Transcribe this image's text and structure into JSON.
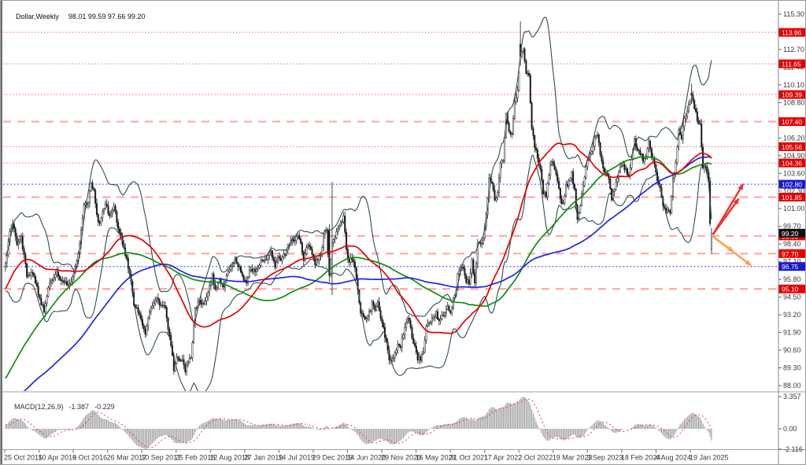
{
  "window": {
    "title_symbol": "Dollar,Weekly",
    "title_ohlc": "98.01 99.59 97.66 99.20"
  },
  "chart_data": {
    "type": "candlestick",
    "symbol": "Dollar",
    "timeframe": "Weekly",
    "last_bar_ohlc": {
      "open": 98.01,
      "high": 99.59,
      "low": 97.66,
      "close": 99.2
    },
    "x_axis_labels": [
      "25 Oct 2015",
      "10 Apr 2016",
      "9 Oct 2016",
      "26 Mar 2017",
      "10 Sep 2017",
      "25 Feb 2018",
      "12 Aug 2018",
      "27 Jan 2019",
      "14 Jul 2019",
      "29 Dec 2019",
      "14 Jun 2020",
      "29 Nov 2020",
      "16 May 2021",
      "31 Oct 2021",
      "17 Apr 2022",
      "2 Oct 2022",
      "19 Mar 2023",
      "3 Sep 2023",
      "18 Feb 2024",
      "4 Aug 2024",
      "19 Jan 2025"
    ],
    "y_axis_ticks": [
      "115.30",
      "112.70",
      "111.40",
      "110.10",
      "108.80",
      "106.20",
      "104.90",
      "103.60",
      "102.30",
      "101.00",
      "99.70",
      "98.40",
      "97.10",
      "95.80",
      "94.50",
      "93.20",
      "91.90",
      "90.60",
      "89.30",
      "88.00"
    ],
    "levels": [
      {
        "price": 113.96,
        "label": "113.96",
        "style": "dot-red"
      },
      {
        "price": 111.65,
        "label": "111.65",
        "style": "dot-red"
      },
      {
        "price": 109.39,
        "label": "109.39",
        "style": "dot-red"
      },
      {
        "price": 107.4,
        "label": "107.40",
        "style": "dash-red"
      },
      {
        "price": 105.56,
        "label": "105.56",
        "style": "dot-red"
      },
      {
        "price": 104.36,
        "label": "104.36",
        "style": "dot-red"
      },
      {
        "price": 102.8,
        "label": "102.80",
        "style": "dot-blue"
      },
      {
        "price": 101.85,
        "label": "101.85",
        "style": "dash-red"
      },
      {
        "price": 99.0,
        "label": "99.00",
        "style": "dash-red"
      },
      {
        "price": 97.7,
        "label": "97.70",
        "style": "dash-red"
      },
      {
        "price": 96.75,
        "label": "96.75",
        "style": "dot-blue"
      },
      {
        "price": 95.1,
        "label": "95.10",
        "style": "dash-red"
      }
    ],
    "current_price": {
      "value": 99.2,
      "label": "99.20"
    },
    "indicators": {
      "bollinger": {
        "period": 20,
        "deviation": 2,
        "color": "#2f4f4f"
      },
      "moving_averages": [
        {
          "name": "ma-fast",
          "period": 50,
          "color": "#e80000"
        },
        {
          "name": "ma-mid",
          "period": 100,
          "color": "#0e8f0e"
        },
        {
          "name": "ma-slow",
          "period": 150,
          "color": "#2424e8"
        }
      ]
    },
    "colors": {
      "candle_up": "#ffffff",
      "candle_down": "#1a1a1a",
      "candle_outline": "#1a1a1a",
      "level_dot_red": "#f26d6d",
      "level_dash_red": "#ffa8a0",
      "level_dot_blue": "#4343ff",
      "box_red": "#e60000",
      "box_blue": "#1a1acc",
      "box_black": "#101010",
      "arrow_red": "#f03030",
      "arrow_orange": "#ffa04d",
      "axis_text": "#3a3a3a",
      "macd_hist": "#909090",
      "macd_signal": "#e04040"
    },
    "series_keyframes": [
      [
        -160,
        81.3
      ],
      [
        -148,
        83.0
      ],
      [
        -134,
        81.0
      ],
      [
        -120,
        81.6
      ],
      [
        -104,
        80.6
      ],
      [
        -88,
        80.1
      ],
      [
        -72,
        80.3
      ],
      [
        -58,
        84.8
      ],
      [
        -46,
        88.9
      ],
      [
        -36,
        94.7
      ],
      [
        -30,
        99.3
      ],
      [
        -24,
        97.0
      ],
      [
        -18,
        95.6
      ],
      [
        -12,
        97.5
      ],
      [
        -8,
        95.0
      ],
      [
        -4,
        96.2
      ],
      [
        0,
        96.9
      ],
      [
        3,
        99.2
      ],
      [
        5,
        100.0
      ],
      [
        8,
        98.3
      ],
      [
        11,
        98.9
      ],
      [
        15,
        96.1
      ],
      [
        19,
        96.4
      ],
      [
        23,
        94.7
      ],
      [
        27,
        93.5
      ],
      [
        31,
        95.7
      ],
      [
        36,
        96.2
      ],
      [
        40,
        95.6
      ],
      [
        45,
        95.4
      ],
      [
        49,
        96.6
      ],
      [
        52,
        98.3
      ],
      [
        55,
        101.2
      ],
      [
        58,
        101.5
      ],
      [
        60,
        102.9
      ],
      [
        62,
        102.2
      ],
      [
        64,
        100.5
      ],
      [
        66,
        99.9
      ],
      [
        70,
        101.4
      ],
      [
        73,
        100.4
      ],
      [
        76,
        101.2
      ],
      [
        80,
        99.1
      ],
      [
        85,
        97.2
      ],
      [
        88,
        95.8
      ],
      [
        90,
        93.9
      ],
      [
        93,
        93.4
      ],
      [
        95,
        92.8
      ],
      [
        98,
        91.9
      ],
      [
        100,
        93.1
      ],
      [
        102,
        93.7
      ],
      [
        106,
        94.5
      ],
      [
        109,
        93.8
      ],
      [
        112,
        93.9
      ],
      [
        114,
        92.1
      ],
      [
        116,
        91.0
      ],
      [
        118,
        89.1
      ],
      [
        120,
        90.2
      ],
      [
        122,
        89.7
      ],
      [
        124,
        90.0
      ],
      [
        126,
        89.0
      ],
      [
        128,
        89.8
      ],
      [
        130,
        90.1
      ],
      [
        133,
        93.6
      ],
      [
        136,
        94.2
      ],
      [
        139,
        93.9
      ],
      [
        142,
        95.0
      ],
      [
        145,
        96.1
      ],
      [
        147,
        95.1
      ],
      [
        150,
        95.8
      ],
      [
        153,
        95.1
      ],
      [
        156,
        96.4
      ],
      [
        159,
        96.9
      ],
      [
        161,
        97.3
      ],
      [
        163,
        96.8
      ],
      [
        165,
        96.4
      ],
      [
        167,
        95.9
      ],
      [
        169,
        95.7
      ],
      [
        172,
        96.6
      ],
      [
        175,
        96.3
      ],
      [
        178,
        96.9
      ],
      [
        181,
        97.3
      ],
      [
        184,
        97.5
      ],
      [
        186,
        97.9
      ],
      [
        189,
        96.7
      ],
      [
        191,
        97.5
      ],
      [
        193,
        97.3
      ],
      [
        196,
        97.7
      ],
      [
        198,
        98.3
      ],
      [
        201,
        98.9
      ],
      [
        203,
        98.5
      ],
      [
        205,
        99.1
      ],
      [
        207,
        98.5
      ],
      [
        209,
        97.3
      ],
      [
        211,
        98.2
      ],
      [
        213,
        98.3
      ],
      [
        215,
        97.7
      ],
      [
        217,
        96.9
      ],
      [
        219,
        97.4
      ],
      [
        221,
        97.6
      ],
      [
        223,
        99.0
      ],
      [
        225,
        99.5
      ],
      [
        227,
        96.1
      ],
      [
        229,
        98.5
      ],
      [
        231,
        98.8
      ],
      [
        233,
        99.6
      ],
      [
        235,
        100.0
      ],
      [
        237,
        100.4
      ],
      [
        239,
        97.9
      ],
      [
        241,
        97.0
      ],
      [
        243,
        97.4
      ],
      [
        245,
        96.7
      ],
      [
        247,
        94.9
      ],
      [
        249,
        93.4
      ],
      [
        251,
        93.0
      ],
      [
        253,
        92.8
      ],
      [
        255,
        93.3
      ],
      [
        257,
        94.0
      ],
      [
        259,
        93.7
      ],
      [
        261,
        94.0
      ],
      [
        263,
        92.8
      ],
      [
        265,
        92.2
      ],
      [
        267,
        91.1
      ],
      [
        269,
        90.0
      ],
      [
        271,
        89.9
      ],
      [
        273,
        90.5
      ],
      [
        275,
        91.0
      ],
      [
        277,
        90.9
      ],
      [
        279,
        91.9
      ],
      [
        281,
        92.8
      ],
      [
        283,
        92.9
      ],
      [
        285,
        91.6
      ],
      [
        287,
        90.8
      ],
      [
        289,
        90.0
      ],
      [
        291,
        90.0
      ],
      [
        293,
        90.5
      ],
      [
        295,
        92.2
      ],
      [
        298,
        92.7
      ],
      [
        300,
        92.9
      ],
      [
        302,
        93.4
      ],
      [
        304,
        92.6
      ],
      [
        306,
        93.2
      ],
      [
        308,
        93.3
      ],
      [
        310,
        94.0
      ],
      [
        312,
        93.3
      ],
      [
        314,
        94.3
      ],
      [
        316,
        95.1
      ],
      [
        317,
        96.1
      ],
      [
        319,
        96.6
      ],
      [
        321,
        96.5
      ],
      [
        323,
        95.7
      ],
      [
        325,
        95.6
      ],
      [
        327,
        97.2
      ],
      [
        329,
        95.5
      ],
      [
        331,
        98.6
      ],
      [
        333,
        98.3
      ],
      [
        335,
        98.8
      ],
      [
        337,
        100.5
      ],
      [
        339,
        103.2
      ],
      [
        341,
        102.9
      ],
      [
        343,
        101.7
      ],
      [
        345,
        102.1
      ],
      [
        347,
        104.2
      ],
      [
        349,
        104.7
      ],
      [
        351,
        108.0
      ],
      [
        353,
        106.6
      ],
      [
        355,
        106.5
      ],
      [
        357,
        108.8
      ],
      [
        359,
        109.6
      ],
      [
        361,
        112.2
      ],
      [
        363,
        112.8
      ],
      [
        365,
        110.9
      ],
      [
        367,
        110.7
      ],
      [
        369,
        106.9
      ],
      [
        371,
        105.6
      ],
      [
        373,
        104.8
      ],
      [
        375,
        103.9
      ],
      [
        377,
        102.2
      ],
      [
        379,
        101.9
      ],
      [
        381,
        103.6
      ],
      [
        383,
        104.6
      ],
      [
        385,
        103.9
      ],
      [
        387,
        102.9
      ],
      [
        389,
        101.8
      ],
      [
        391,
        101.3
      ],
      [
        393,
        102.7
      ],
      [
        395,
        102.9
      ],
      [
        397,
        103.6
      ],
      [
        399,
        102.3
      ],
      [
        401,
        100.3
      ],
      [
        403,
        101.1
      ],
      [
        405,
        102.8
      ],
      [
        407,
        104.1
      ],
      [
        409,
        104.9
      ],
      [
        411,
        105.3
      ],
      [
        413,
        106.2
      ],
      [
        415,
        106.6
      ],
      [
        417,
        105.1
      ],
      [
        419,
        104.0
      ],
      [
        421,
        103.5
      ],
      [
        423,
        103.3
      ],
      [
        425,
        101.8
      ],
      [
        427,
        102.4
      ],
      [
        429,
        103.3
      ],
      [
        431,
        104.1
      ],
      [
        433,
        104.2
      ],
      [
        435,
        103.8
      ],
      [
        437,
        103.5
      ],
      [
        439,
        104.5
      ],
      [
        441,
        106.0
      ],
      [
        443,
        105.3
      ],
      [
        445,
        105.1
      ],
      [
        447,
        104.6
      ],
      [
        449,
        104.7
      ],
      [
        451,
        105.8
      ],
      [
        453,
        104.9
      ],
      [
        455,
        104.4
      ],
      [
        457,
        103.2
      ],
      [
        459,
        102.6
      ],
      [
        461,
        101.2
      ],
      [
        463,
        100.8
      ],
      [
        465,
        100.9
      ],
      [
        466,
        100.6
      ],
      [
        468,
        103.2
      ],
      [
        470,
        104.3
      ],
      [
        472,
        107.0
      ],
      [
        474,
        106.2
      ],
      [
        476,
        107.8
      ],
      [
        478,
        108.1
      ],
      [
        480,
        109.0
      ],
      [
        481,
        109.4
      ],
      [
        483,
        108.4
      ],
      [
        485,
        107.6
      ],
      [
        487,
        107.2
      ],
      [
        489,
        103.9
      ],
      [
        491,
        104.1
      ],
      [
        493,
        103.0
      ],
      [
        494,
        99.8
      ],
      [
        495,
        99.2
      ]
    ],
    "special_bars": {
      "227": [
        99.4,
        99.85,
        95.6,
        96.1
      ],
      "229": [
        96.2,
        102.99,
        94.65,
        98.5
      ],
      "361": [
        113.1,
        114.78,
        111.5,
        112.2
      ],
      "481": [
        109.5,
        110.18,
        108.7,
        109.35
      ],
      "495": [
        98.01,
        99.59,
        97.66,
        99.2
      ]
    },
    "arrows": [
      {
        "from": [
          496,
          99.1
        ],
        "to": [
          514,
          101.72
        ],
        "color": "#f03030"
      },
      {
        "from": [
          496,
          99.1
        ],
        "to": [
          517,
          102.78
        ],
        "color": "#f03030"
      },
      {
        "from": [
          496,
          98.95
        ],
        "to": [
          510,
          97.88
        ],
        "color": "#ffa04d"
      },
      {
        "from": [
          496,
          98.95
        ],
        "to": [
          522.5,
          96.85
        ],
        "color": "#ffa04d"
      }
    ]
  },
  "macd": {
    "label": "MACD(12,26,9)",
    "value": "-1.387",
    "signal_value": "-0.229",
    "scale_labels": [
      "3.357",
      "0.00",
      "-2.116"
    ]
  }
}
